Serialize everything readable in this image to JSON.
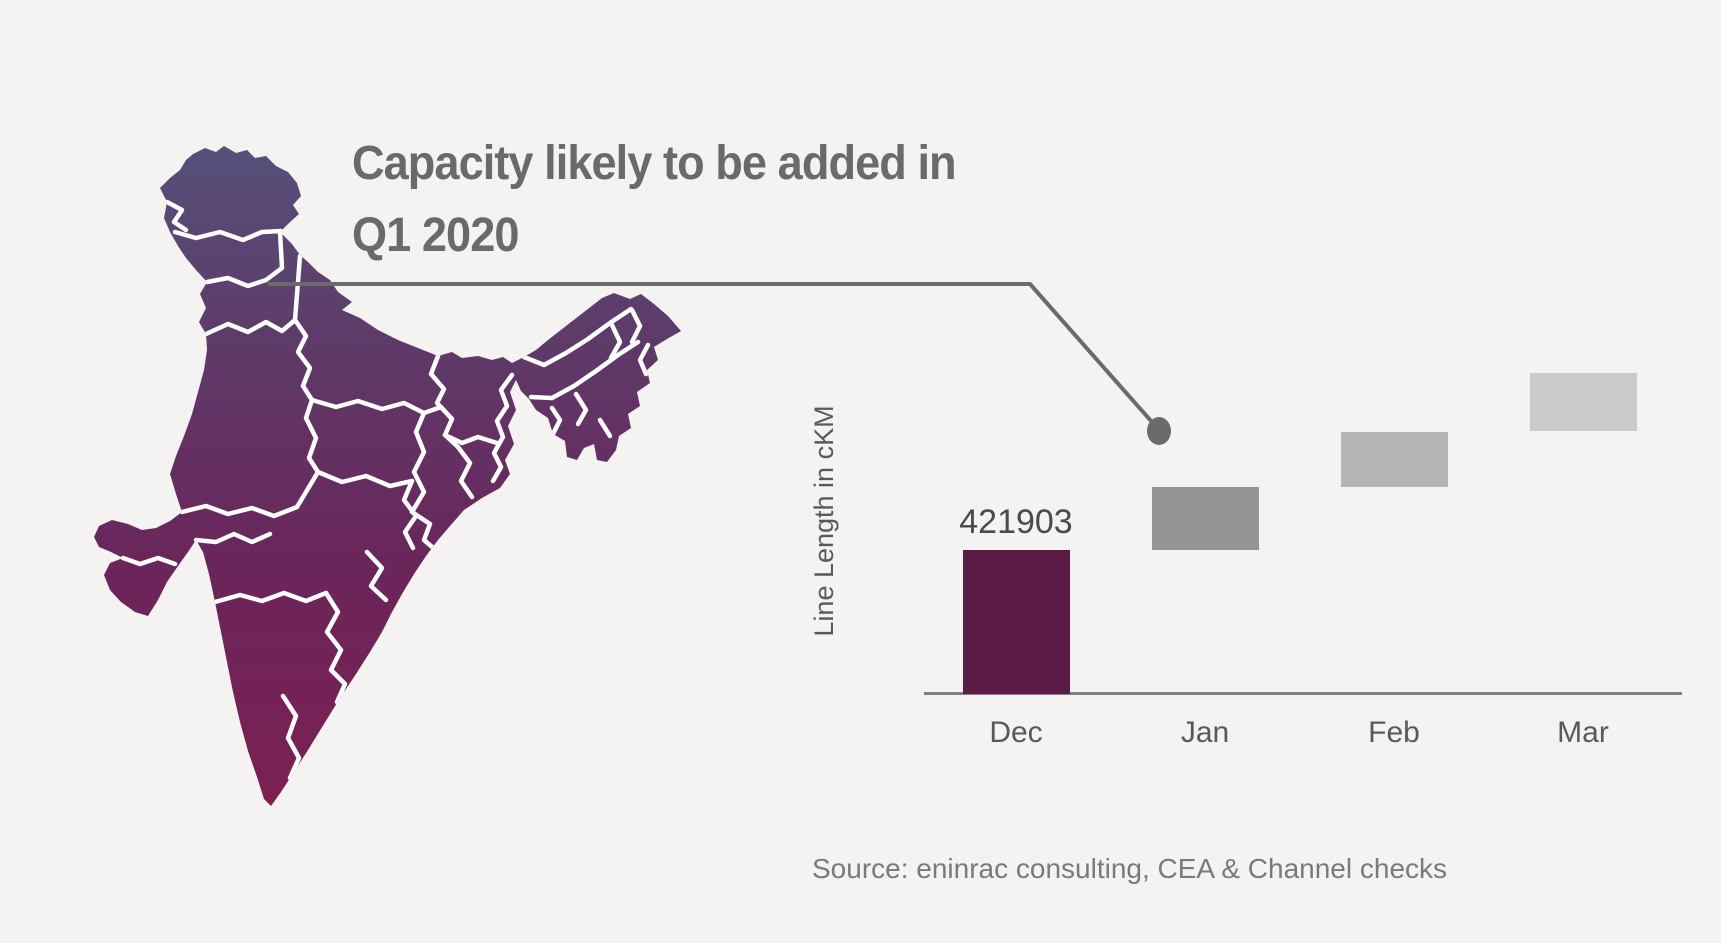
{
  "background_color": "#f4f3f2",
  "title": {
    "line1": "Capacity likely to be added in",
    "line2": "Q1 2020",
    "color": "#6a6a6a"
  },
  "map": {
    "label": "india-states-map",
    "gradient_top": "#56507A",
    "gradient_upper_mid": "#5E3A69",
    "gradient_lower_mid": "#6B255A",
    "gradient_bottom": "#7C2053",
    "state_border_color": "#ffffff"
  },
  "connector": {
    "color": "#6a6a6a"
  },
  "chart_data": {
    "type": "bar",
    "subtype": "waterfall-steps",
    "title": "",
    "xlabel": "",
    "ylabel": "Line Length in cKM",
    "categories": [
      "Dec",
      "Jan",
      "Feb",
      "Mar"
    ],
    "gridlines": false,
    "legend": "none",
    "y_axis_ticks": "none",
    "axis_color": "#7f7f7f",
    "label_color": "#595959",
    "value_label_color": "#4a4a4a",
    "bars": [
      {
        "month": "Dec",
        "from": 0,
        "to": 421903,
        "label": "421903",
        "estimated": false,
        "color": "#5a1c47"
      },
      {
        "month": "Jan",
        "from": 421903,
        "to": 606000,
        "label": "",
        "estimated": true,
        "color": "#959595"
      },
      {
        "month": "Feb",
        "from": 606000,
        "to": 768000,
        "label": "",
        "estimated": true,
        "color": "#b5b5b5"
      },
      {
        "month": "Mar",
        "from": 770000,
        "to": 941000,
        "label": "",
        "estimated": true,
        "color": "#cbcbcb"
      }
    ]
  },
  "source": {
    "text": "Source: eninrac consulting, CEA & Channel checks",
    "color": "#7a7a7a"
  }
}
